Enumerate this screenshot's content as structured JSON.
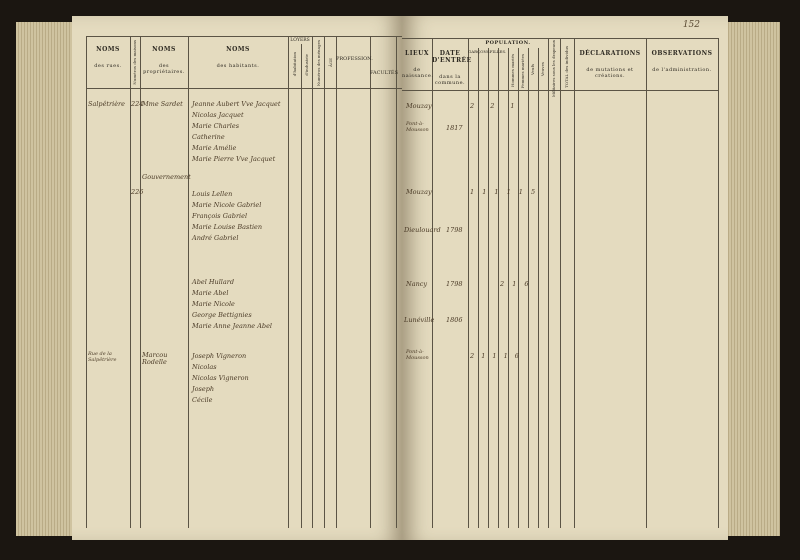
{
  "page_number": "152",
  "left_headers": {
    "rues": {
      "title": "NOMS",
      "sub": "des rues."
    },
    "maisons": "Numéros des maisons",
    "proprietaires": {
      "title": "NOMS",
      "sub": "des propriétaires."
    },
    "habitants": {
      "title": "NOMS",
      "sub": "des habitants."
    },
    "loyers": {
      "title": "LOYERS",
      "sub1": "d'habitation",
      "sub2": "d'industrie"
    },
    "menages": "Numéros des ménages",
    "age": "ÂGE",
    "profession": "PROFESSION.",
    "facultes": "FACULTÉS"
  },
  "right_headers": {
    "lieux": {
      "title": "LIEUX",
      "sub": "de naissance."
    },
    "date": {
      "title": "DATE D'ENTRÉE",
      "sub": "dans la commune."
    },
    "population": {
      "title": "POPULATION.",
      "garcons": "GARÇONS.",
      "filles": "FILLES.",
      "hommes": "Hommes mariés",
      "femmes": "Femmes mariées",
      "veufs": "Veufs",
      "veuves": "Veuves"
    },
    "militaires": "Militaires sous les drapeaux",
    "total": "TOTAL des individus",
    "declarations": {
      "title": "DÉCLARATIONS",
      "sub": "de mutations et créations."
    },
    "observations": {
      "title": "OBSERVATIONS",
      "sub": "de l'administration."
    }
  },
  "entries_left": [
    {
      "rue": "Salpêtrière",
      "maison": "224",
      "proprietaire": "Mme Sardet",
      "habitants": [
        "Jeanne Aubert Vve Jacquet",
        "Nicolas Jacquet",
        "Marie Charles",
        "Catherine",
        "Marie Amélie",
        "Marie Pierre Vve Jacquet"
      ]
    },
    {
      "maison": "226",
      "proprietaire": "Gouvernement",
      "habitants": [
        "Louis Lellen",
        "Marie Nicole Gabriel",
        "François Gabriel",
        "Marie Louise Bastien",
        "André Gabriel"
      ]
    },
    {
      "habitants": [
        "Abel Hullard",
        "Marie Abel",
        "Marie Nicole",
        "George Bettignies",
        "Marie Anne Jeanne Abel"
      ]
    },
    {
      "rue": "Rue de la Salpêtrière",
      "proprietaire": "Marcou Rodelle",
      "habitants": [
        "Joseph Vigneron",
        "Nicolas",
        "Nicolas Vigneron",
        "Joseph",
        "Cécile"
      ]
    }
  ],
  "entries_right": [
    {
      "lieu": "Mouzay",
      "date": "",
      "counts": "2  2  1"
    },
    {
      "lieu": "Pont-à-Mousson",
      "date": "1817"
    },
    {
      "lieu": "Mouzay",
      "counts": "1 1 1 1 1  5"
    },
    {
      "lieu": "Dieulouard",
      "date": "1798"
    },
    {
      "lieu": "Nancy",
      "date": "1798",
      "counts": "2 1   6"
    },
    {
      "lieu": "Lunéville",
      "date": "1806"
    },
    {
      "lieu": "Pont-à-Mousson",
      "counts": "2  1   1 1  6"
    }
  ]
}
